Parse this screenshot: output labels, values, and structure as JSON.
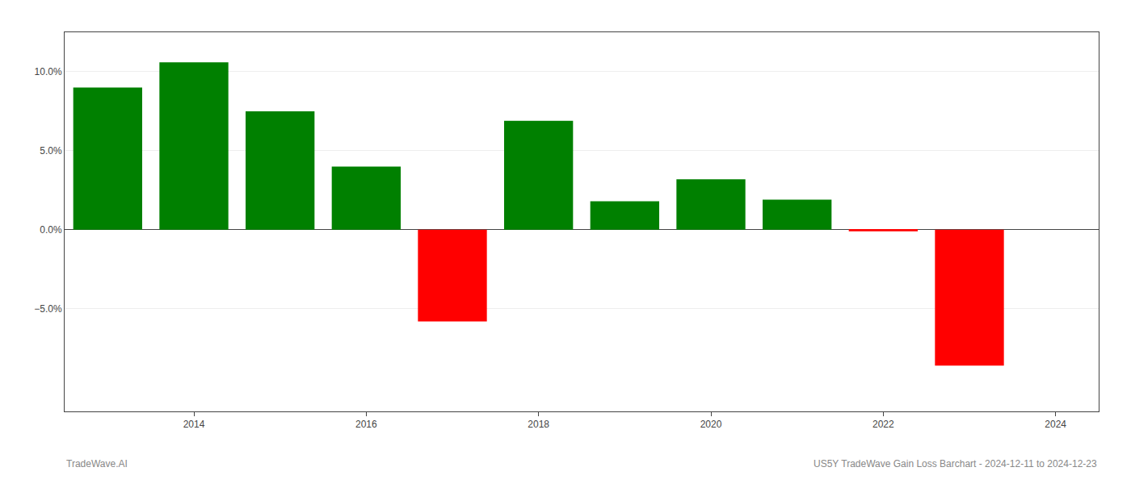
{
  "chart_data": {
    "type": "bar",
    "x": [
      2013,
      2014,
      2015,
      2016,
      2017,
      2018,
      2019,
      2020,
      2021,
      2022,
      2023
    ],
    "values": [
      9.0,
      10.6,
      7.5,
      4.0,
      -5.8,
      6.9,
      1.8,
      3.2,
      1.9,
      -0.1,
      -8.6
    ],
    "colors": [
      "#008000",
      "#008000",
      "#008000",
      "#008000",
      "#ff0000",
      "#008000",
      "#008000",
      "#008000",
      "#008000",
      "#ff0000",
      "#ff0000"
    ],
    "xlim": [
      2012.5,
      2024.5
    ],
    "xticks": [
      2014,
      2016,
      2018,
      2020,
      2022,
      2024
    ],
    "ylim": [
      -11.5,
      12.5
    ],
    "yticks": [
      {
        "value": -5.0,
        "label": "−5.0%"
      },
      {
        "value": 0.0,
        "label": "0.0%"
      },
      {
        "value": 5.0,
        "label": "5.0%"
      },
      {
        "value": 10.0,
        "label": "10.0%"
      }
    ],
    "grid": true,
    "annotations": [
      "TradeWave.AI",
      "US5Y TradeWave Gain Loss Barchart - 2024-12-11 to 2024-12-23"
    ]
  }
}
